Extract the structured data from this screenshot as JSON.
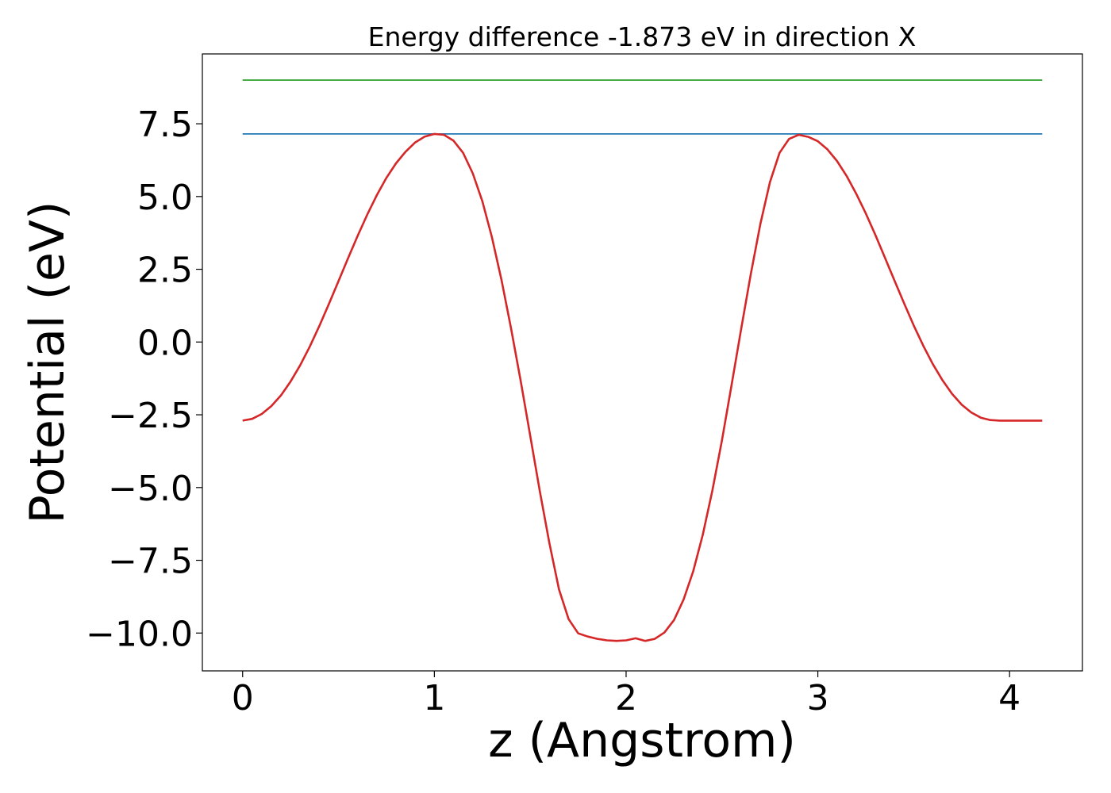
{
  "chart_data": {
    "type": "line",
    "title": "Energy difference -1.873 eV in direction X",
    "xlabel": "z (Angstrom)",
    "ylabel": "Potential (eV)",
    "xlim": [
      -0.21,
      4.38
    ],
    "ylim": [
      -11.3,
      9.9
    ],
    "grid": false,
    "legend": "none",
    "x_ticks": [
      {
        "value": 0,
        "label": "0"
      },
      {
        "value": 1,
        "label": "1"
      },
      {
        "value": 2,
        "label": "2"
      },
      {
        "value": 3,
        "label": "3"
      },
      {
        "value": 4,
        "label": "4"
      }
    ],
    "y_ticks": [
      {
        "value": 7.5,
        "label": "7.5"
      },
      {
        "value": 5.0,
        "label": "5.0"
      },
      {
        "value": 2.5,
        "label": "2.5"
      },
      {
        "value": 0.0,
        "label": "0.0"
      },
      {
        "value": -2.5,
        "label": "−2.5"
      },
      {
        "value": -5.0,
        "label": "−5.0"
      },
      {
        "value": -7.5,
        "label": "−7.5"
      },
      {
        "value": -10.0,
        "label": "−10.0"
      }
    ],
    "series": [
      {
        "color": "#2ca02c",
        "x": [
          0,
          4.17
        ],
        "y": [
          9.0,
          9.0
        ]
      },
      {
        "color": "#1f77b4",
        "x": [
          0,
          4.17
        ],
        "y": [
          7.15,
          7.15
        ]
      },
      {
        "color": "#d62728",
        "x": [
          0,
          0.05,
          0.1,
          0.15,
          0.2,
          0.25,
          0.3,
          0.35,
          0.4,
          0.45,
          0.5,
          0.55,
          0.6,
          0.65,
          0.7,
          0.75,
          0.8,
          0.85,
          0.9,
          0.95,
          1.0,
          1.05,
          1.1,
          1.15,
          1.2,
          1.25,
          1.3,
          1.35,
          1.4,
          1.45,
          1.5,
          1.55,
          1.6,
          1.65,
          1.7,
          1.75,
          1.8,
          1.85,
          1.9,
          1.95,
          2.0,
          2.05,
          2.1,
          2.15,
          2.2,
          2.25,
          2.3,
          2.35,
          2.4,
          2.45,
          2.5,
          2.55,
          2.6,
          2.65,
          2.7,
          2.75,
          2.8,
          2.85,
          2.9,
          2.95,
          3.0,
          3.05,
          3.1,
          3.15,
          3.2,
          3.25,
          3.3,
          3.35,
          3.4,
          3.45,
          3.5,
          3.55,
          3.6,
          3.65,
          3.7,
          3.75,
          3.8,
          3.85,
          3.9,
          3.95,
          4.0,
          4.05,
          4.1,
          4.15,
          4.17
        ],
        "y": [
          -2.7,
          -2.64,
          -2.47,
          -2.2,
          -1.83,
          -1.36,
          -0.8,
          -0.16,
          0.55,
          1.31,
          2.09,
          2.88,
          3.65,
          4.38,
          5.05,
          5.64,
          6.14,
          6.54,
          6.86,
          7.06,
          7.15,
          7.12,
          6.92,
          6.5,
          5.8,
          4.84,
          3.61,
          2.14,
          0.47,
          -1.33,
          -3.23,
          -5.12,
          -6.91,
          -8.5,
          -9.52,
          -10.01,
          -10.12,
          -10.2,
          -10.25,
          -10.27,
          -10.25,
          -10.18,
          -10.27,
          -10.2,
          -9.98,
          -9.55,
          -8.85,
          -7.88,
          -6.62,
          -5.1,
          -3.37,
          -1.49,
          0.44,
          2.32,
          4.05,
          5.49,
          6.5,
          6.98,
          7.12,
          7.05,
          6.9,
          6.62,
          6.22,
          5.71,
          5.1,
          4.42,
          3.68,
          2.9,
          2.11,
          1.33,
          0.57,
          -0.13,
          -0.76,
          -1.31,
          -1.78,
          -2.15,
          -2.42,
          -2.6,
          -2.68,
          -2.7,
          -2.7,
          -2.7,
          -2.7,
          -2.7,
          -2.7
        ]
      }
    ]
  }
}
